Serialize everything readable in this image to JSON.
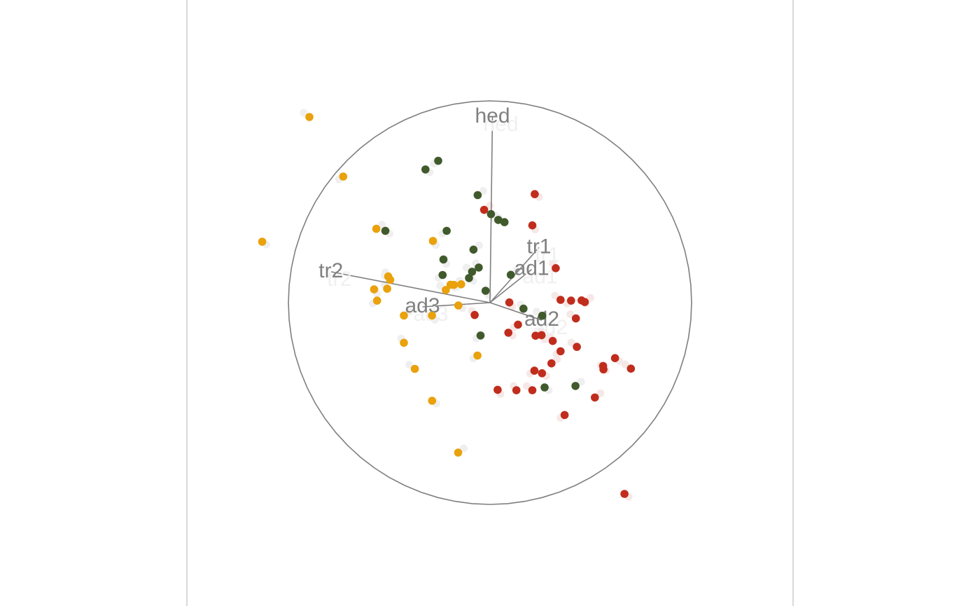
{
  "chart_data": {
    "type": "scatter",
    "title": "",
    "subtitle": "",
    "grid": false,
    "legend": "none",
    "circle": {
      "center": [
        0,
        0
      ],
      "radius": 1
    },
    "colors": {
      "frame": "#b3b3b3",
      "circle": "#7f7f7f",
      "axis": "#808080",
      "ghost_point": "#f0efef",
      "ghost_point_red": "#f6e8e6"
    },
    "axes": [
      {
        "label": "hed",
        "x": 0.012,
        "y": 0.919
      },
      {
        "label": "tr1",
        "x": 0.243,
        "y": 0.273
      },
      {
        "label": "ad1",
        "x": 0.207,
        "y": 0.165
      },
      {
        "label": "tr2",
        "x": -0.789,
        "y": 0.153
      },
      {
        "label": "ad3",
        "x": -0.335,
        "y": -0.021
      },
      {
        "label": "ad2",
        "x": 0.257,
        "y": -0.087
      }
    ],
    "series": [
      {
        "color": "#e9a10c",
        "points": [
          [
            -0.896,
            0.92
          ],
          [
            -0.728,
            0.625
          ],
          [
            -1.13,
            0.302
          ],
          [
            -0.564,
            0.366
          ],
          [
            -0.283,
            0.306
          ],
          [
            -0.505,
            0.13
          ],
          [
            -0.495,
            0.113
          ],
          [
            -0.143,
            0.091
          ],
          [
            -0.196,
            0.089
          ],
          [
            -0.179,
            0.088
          ],
          [
            -0.575,
            0.066
          ],
          [
            -0.51,
            0.069
          ],
          [
            -0.219,
            0.063
          ],
          [
            -0.56,
            0.01
          ],
          [
            -0.157,
            -0.014
          ],
          [
            -0.427,
            -0.064
          ],
          [
            -0.288,
            -0.064
          ],
          [
            -0.427,
            -0.199
          ],
          [
            -0.373,
            -0.328
          ],
          [
            -0.062,
            -0.262
          ],
          [
            -0.287,
            -0.486
          ],
          [
            -0.158,
            -0.743
          ]
        ]
      },
      {
        "color": "#405a2c",
        "points": [
          [
            -0.257,
            0.703
          ],
          [
            -0.32,
            0.66
          ],
          [
            -0.061,
            0.533
          ],
          [
            0.005,
            0.439
          ],
          [
            0.041,
            0.41
          ],
          [
            0.072,
            0.399
          ],
          [
            -0.215,
            0.356
          ],
          [
            -0.519,
            0.356
          ],
          [
            -0.082,
            0.263
          ],
          [
            -0.231,
            0.214
          ],
          [
            -0.056,
            0.174
          ],
          [
            -0.089,
            0.153
          ],
          [
            -0.235,
            0.137
          ],
          [
            -0.104,
            0.122
          ],
          [
            0.103,
            0.138
          ],
          [
            -0.022,
            0.059
          ],
          [
            0.166,
            -0.03
          ],
          [
            0.259,
            -0.065
          ],
          [
            -0.047,
            -0.163
          ],
          [
            0.271,
            -0.42
          ],
          [
            0.424,
            -0.413
          ]
        ]
      },
      {
        "color": "#c02d1d",
        "points": [
          [
            0.222,
            0.538
          ],
          [
            -0.029,
            0.46
          ],
          [
            0.21,
            0.383
          ],
          [
            0.326,
            0.171
          ],
          [
            0.35,
            0.014
          ],
          [
            0.402,
            0.01
          ],
          [
            0.454,
            0.011
          ],
          [
            0.47,
            0.003
          ],
          [
            0.096,
            0.001
          ],
          [
            -0.076,
            -0.061
          ],
          [
            0.426,
            -0.078
          ],
          [
            0.139,
            -0.109
          ],
          [
            0.091,
            -0.149
          ],
          [
            0.226,
            -0.164
          ],
          [
            0.256,
            -0.161
          ],
          [
            0.311,
            -0.19
          ],
          [
            0.431,
            -0.219
          ],
          [
            0.35,
            -0.241
          ],
          [
            0.62,
            -0.275
          ],
          [
            0.305,
            -0.301
          ],
          [
            0.561,
            -0.314
          ],
          [
            0.563,
            -0.331
          ],
          [
            0.699,
            -0.327
          ],
          [
            0.22,
            -0.337
          ],
          [
            0.258,
            -0.35
          ],
          [
            0.52,
            -0.47
          ],
          [
            0.038,
            -0.432
          ],
          [
            0.131,
            -0.434
          ],
          [
            0.21,
            -0.434
          ],
          [
            0.37,
            -0.557
          ],
          [
            0.667,
            -0.948
          ]
        ]
      }
    ]
  }
}
